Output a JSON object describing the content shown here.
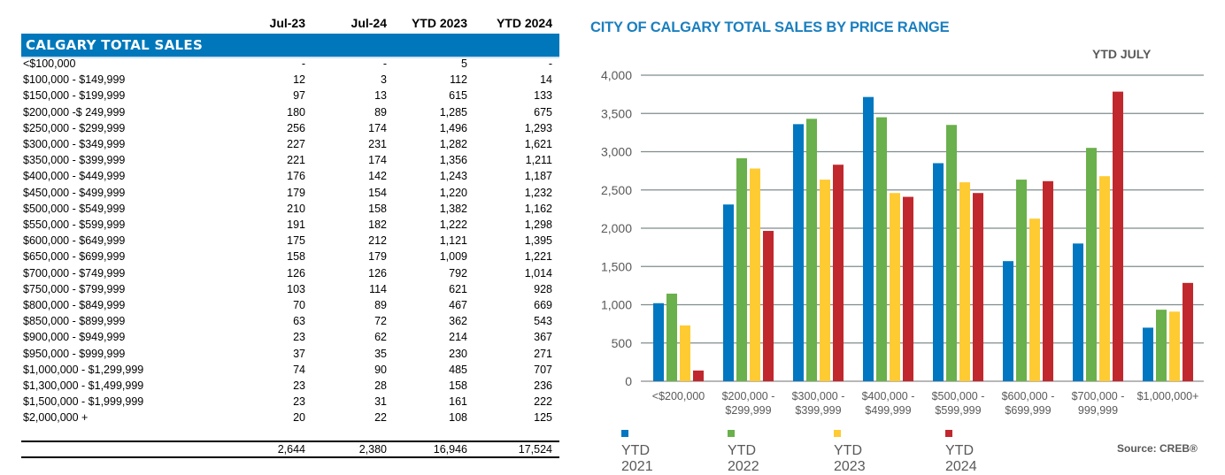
{
  "table": {
    "columns": [
      "Jul-23",
      "Jul-24",
      "YTD 2023",
      "YTD 2024"
    ],
    "title": "CALGARY TOTAL SALES",
    "rows": [
      {
        "label": "<$100,000",
        "values": [
          "-",
          "-",
          "5",
          "-"
        ]
      },
      {
        "label": "$100,000 - $149,999",
        "values": [
          "12",
          "3",
          "112",
          "14"
        ]
      },
      {
        "label": "$150,000 - $199,999",
        "values": [
          "97",
          "13",
          "615",
          "133"
        ]
      },
      {
        "label": "$200,000 -$ 249,999",
        "values": [
          "180",
          "89",
          "1,285",
          "675"
        ]
      },
      {
        "label": "$250,000 - $299,999",
        "values": [
          "256",
          "174",
          "1,496",
          "1,293"
        ]
      },
      {
        "label": "$300,000 - $349,999",
        "values": [
          "227",
          "231",
          "1,282",
          "1,621"
        ]
      },
      {
        "label": "$350,000 - $399,999",
        "values": [
          "221",
          "174",
          "1,356",
          "1,211"
        ]
      },
      {
        "label": "$400,000 - $449,999",
        "values": [
          "176",
          "142",
          "1,243",
          "1,187"
        ]
      },
      {
        "label": "$450,000 - $499,999",
        "values": [
          "179",
          "154",
          "1,220",
          "1,232"
        ]
      },
      {
        "label": "$500,000 - $549,999",
        "values": [
          "210",
          "158",
          "1,382",
          "1,162"
        ]
      },
      {
        "label": "$550,000 - $599,999",
        "values": [
          "191",
          "182",
          "1,222",
          "1,298"
        ]
      },
      {
        "label": "$600,000 - $649,999",
        "values": [
          "175",
          "212",
          "1,121",
          "1,395"
        ]
      },
      {
        "label": "$650,000 - $699,999",
        "values": [
          "158",
          "179",
          "1,009",
          "1,221"
        ]
      },
      {
        "label": "$700,000 - $749,999",
        "values": [
          "126",
          "126",
          "792",
          "1,014"
        ]
      },
      {
        "label": "$750,000 - $799,999",
        "values": [
          "103",
          "114",
          "621",
          "928"
        ]
      },
      {
        "label": "$800,000 - $849,999",
        "values": [
          "70",
          "89",
          "467",
          "669"
        ]
      },
      {
        "label": "$850,000 - $899,999",
        "values": [
          "63",
          "72",
          "362",
          "543"
        ]
      },
      {
        "label": "$900,000 - $949,999",
        "values": [
          "23",
          "62",
          "214",
          "367"
        ]
      },
      {
        "label": "$950,000 - $999,999",
        "values": [
          "37",
          "35",
          "230",
          "271"
        ]
      },
      {
        "label": "$1,000,000 - $1,299,999",
        "values": [
          "74",
          "90",
          "485",
          "707"
        ]
      },
      {
        "label": "$1,300,000 - $1,499,999",
        "values": [
          "23",
          "28",
          "158",
          "236"
        ]
      },
      {
        "label": "$1,500,000 - $1,999,999",
        "values": [
          "23",
          "31",
          "161",
          "222"
        ]
      },
      {
        "label": "$2,000,000 +",
        "values": [
          "20",
          "22",
          "108",
          "125"
        ]
      }
    ],
    "totals": [
      "2,644",
      "2,380",
      "16,946",
      "17,524"
    ],
    "header_color": "#0077bb"
  },
  "chart_data": {
    "type": "bar",
    "title": "CITY OF CALGARY TOTAL SALES BY PRICE RANGE",
    "subtitle": "YTD  JULY",
    "xlabel": "",
    "ylabel": "",
    "ylim": [
      0,
      4000
    ],
    "yticks": [
      0,
      500,
      1000,
      1500,
      2000,
      2500,
      3000,
      3500,
      4000
    ],
    "ytick_labels": [
      "0",
      "500",
      "1,000",
      "1,500",
      "2,000",
      "2,500",
      "3,000",
      "3,500",
      "4,000"
    ],
    "grid": true,
    "legend_position": "bottom",
    "categories": [
      [
        "<$200,000"
      ],
      [
        "$200,000 -",
        "$299,999"
      ],
      [
        "$300,000 -",
        "$399,999"
      ],
      [
        "$400,000 -",
        "$499,999"
      ],
      [
        "$500,000 -",
        "$599,999"
      ],
      [
        "$600,000 -",
        "$699,999"
      ],
      [
        "$700,000 -",
        "999,999"
      ],
      [
        "$1,000,000+"
      ]
    ],
    "series": [
      {
        "name": "YTD  2021",
        "color": "#0077c0",
        "values": [
          1020,
          2310,
          3360,
          3715,
          2850,
          1570,
          1800,
          700
        ]
      },
      {
        "name": "YTD  2022",
        "color": "#6ab04c",
        "values": [
          1145,
          2915,
          3430,
          3450,
          3350,
          2635,
          3050,
          935
        ]
      },
      {
        "name": "YTD  2023",
        "color": "#fecb33",
        "values": [
          730,
          2780,
          2635,
          2460,
          2600,
          2125,
          2680,
          910
        ]
      },
      {
        "name": "YTD  2024",
        "color": "#c0282d",
        "values": [
          140,
          1965,
          2830,
          2410,
          2460,
          2615,
          3785,
          1285
        ]
      }
    ],
    "source": "Source: CREB®"
  }
}
